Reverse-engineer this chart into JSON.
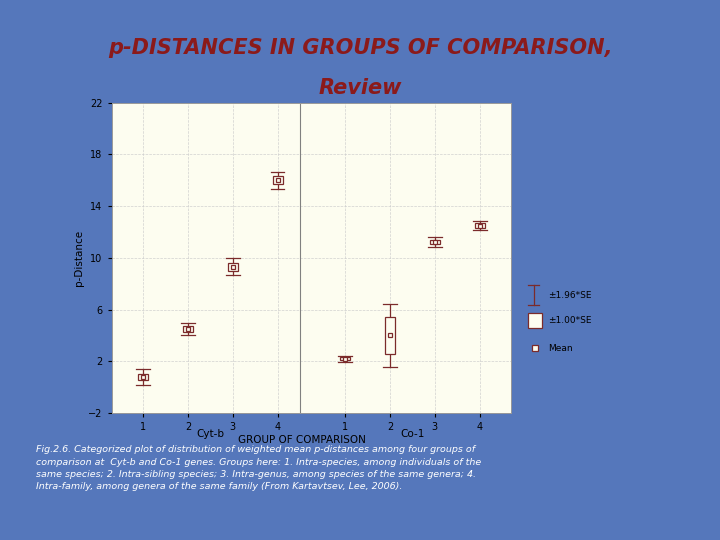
{
  "title_line1": "p-DISTANCES IN GROUPS OF COMPARISON,",
  "title_line2": "Review",
  "title_color": "#8B1A1A",
  "bg_color": "#5577BB",
  "plot_bg": "#FDFDF0",
  "plot_color": "#7B2B2B",
  "ylabel": "p-Distance",
  "xlabel": "GROUP OF COMPARISON",
  "ylim": [
    -2,
    22
  ],
  "yticks": [
    -2,
    2,
    6,
    10,
    14,
    18,
    22
  ],
  "panel_labels": [
    "Cyt-b",
    "Co-1"
  ],
  "caption_line1": "Fig.2.6. Categorized plot of distribution of weighted mean p-distances among four groups of",
  "caption_line2": "comparison at  Cyt-b and Co-1 genes. Groups here: 1. Intra-species, among individuals of the",
  "caption_line3": "same species; 2. Intra-sibling species; 3. Intra-genus, among species of the same genera; 4.",
  "caption_line4": "Intra-family, among genera of the same family (From Kartavtsev, Lee, 2006).",
  "groups": [
    1,
    2,
    3,
    4
  ],
  "cyt_b": {
    "mean": [
      0.8,
      4.5,
      9.3,
      16.0
    ],
    "se1": [
      0.25,
      0.2,
      0.3,
      0.3
    ],
    "se196": [
      0.6,
      0.45,
      0.65,
      0.65
    ]
  },
  "co1": {
    "mean": [
      2.2,
      4.0,
      11.2,
      12.5
    ],
    "se1": [
      0.12,
      1.4,
      0.15,
      0.18
    ],
    "se196": [
      0.25,
      2.4,
      0.38,
      0.38
    ]
  }
}
